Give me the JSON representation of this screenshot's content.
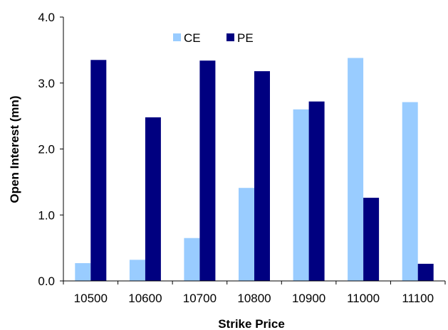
{
  "chart_data": {
    "type": "bar",
    "categories": [
      "10500",
      "10600",
      "10700",
      "10800",
      "10900",
      "11000",
      "11100"
    ],
    "series": [
      {
        "name": "CE",
        "color": "#99ccff",
        "values": [
          0.27,
          0.32,
          0.65,
          1.41,
          2.6,
          3.38,
          2.71
        ]
      },
      {
        "name": "PE",
        "color": "#000080",
        "values": [
          3.35,
          2.48,
          3.34,
          3.18,
          2.72,
          1.26,
          0.26
        ]
      }
    ],
    "xlabel": "Strike Price",
    "ylabel": "Open Interest (mn)",
    "ylim": [
      0,
      4
    ],
    "yticks": [
      "0.0",
      "1.0",
      "2.0",
      "3.0",
      "4.0"
    ],
    "grid": false,
    "legend": "top-center"
  }
}
